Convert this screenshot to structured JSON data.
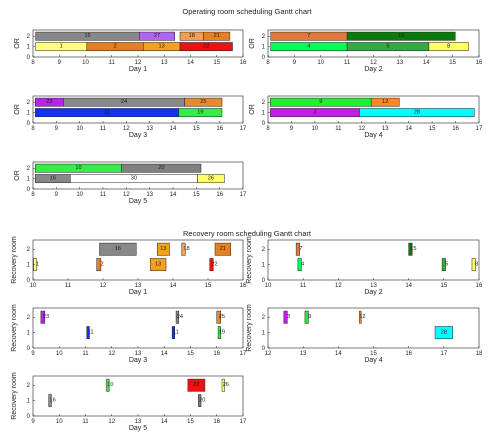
{
  "colors": {
    "1": "#ffff80",
    "2": "#e67e22",
    "3": "#c21ee6",
    "4": "#00ff55",
    "5": "#33aa44",
    "6": "#ff00aa",
    "7": "#e07a3a",
    "8": "#ffff66",
    "9": "#22ee33",
    "10": "#33ee44",
    "11": "#1133ee",
    "12": "#ff8822",
    "13": "#f5a020",
    "15": "#0a7a0a",
    "16": "#888888",
    "18": "#f0a050",
    "19": "#33ee44",
    "20": "#808080",
    "21": "#e68020",
    "22": "#ee1111",
    "23": "#bb22ee",
    "24": "#888888",
    "25": "#e68a2e",
    "26": "#ffff66",
    "27": "#b066ee",
    "28": "#00ffff",
    "30": "#ffffff"
  },
  "chart_data": [
    {
      "type": "gantt",
      "section": "or",
      "title": "Operating room scheduling Gantt chart",
      "xlabel": "Day 1",
      "ylabel": "OR",
      "xlim": [
        8,
        16
      ],
      "xticks": [
        8,
        9,
        10,
        11,
        12,
        13,
        14,
        15,
        16
      ],
      "ylim": [
        0,
        2.6
      ],
      "yticks": [
        0,
        1,
        2
      ],
      "bar_height": 0.8,
      "bars": [
        {
          "id": "1",
          "lane": 1,
          "start": 8.1,
          "end": 10.05
        },
        {
          "id": "2",
          "lane": 1,
          "start": 10.05,
          "end": 12.2
        },
        {
          "id": "13",
          "lane": 1,
          "start": 12.2,
          "end": 13.6
        },
        {
          "id": "22",
          "lane": 1,
          "start": 13.6,
          "end": 15.6
        },
        {
          "id": "16",
          "lane": 2,
          "start": 8.1,
          "end": 12.05
        },
        {
          "id": "27",
          "lane": 2,
          "start": 12.05,
          "end": 13.4
        },
        {
          "id": "18",
          "lane": 2,
          "start": 13.6,
          "end": 14.5
        },
        {
          "id": "21",
          "lane": 2,
          "start": 14.5,
          "end": 15.5
        }
      ]
    },
    {
      "type": "gantt",
      "section": "or",
      "xlabel": "Day 2",
      "ylabel": "OR",
      "xlim": [
        8,
        16
      ],
      "xticks": [
        8,
        9,
        10,
        11,
        12,
        13,
        14,
        15,
        16
      ],
      "ylim": [
        0,
        2.6
      ],
      "yticks": [
        0,
        1,
        2
      ],
      "bar_height": 0.8,
      "bars": [
        {
          "id": "4",
          "lane": 1,
          "start": 8.1,
          "end": 11.0
        },
        {
          "id": "5",
          "lane": 1,
          "start": 11.0,
          "end": 14.1
        },
        {
          "id": "8",
          "lane": 1,
          "start": 14.1,
          "end": 15.6
        },
        {
          "id": "7",
          "lane": 2,
          "start": 8.1,
          "end": 11.0
        },
        {
          "id": "15",
          "lane": 2,
          "start": 11.0,
          "end": 15.1
        }
      ]
    },
    {
      "type": "gantt",
      "section": "or",
      "xlabel": "Day 3",
      "ylabel": "OR",
      "xlim": [
        8,
        17
      ],
      "xticks": [
        8,
        9,
        10,
        11,
        12,
        13,
        14,
        15,
        16,
        17
      ],
      "ylim": [
        0,
        2.6
      ],
      "yticks": [
        0,
        1,
        2
      ],
      "bar_height": 0.8,
      "bars": [
        {
          "id": "11",
          "lane": 1,
          "start": 8.1,
          "end": 14.25
        },
        {
          "id": "19",
          "lane": 1,
          "start": 14.25,
          "end": 16.1
        },
        {
          "id": "23",
          "lane": 2,
          "start": 8.1,
          "end": 9.3
        },
        {
          "id": "24",
          "lane": 2,
          "start": 9.3,
          "end": 14.5
        },
        {
          "id": "25",
          "lane": 2,
          "start": 14.5,
          "end": 16.1
        }
      ]
    },
    {
      "type": "gantt",
      "section": "or",
      "xlabel": "Day 4",
      "ylabel": "OR",
      "xlim": [
        8,
        17
      ],
      "xticks": [
        8,
        9,
        10,
        11,
        12,
        13,
        14,
        15,
        16,
        17
      ],
      "ylim": [
        0,
        2.6
      ],
      "yticks": [
        0,
        1,
        2
      ],
      "bar_height": 0.8,
      "bars": [
        {
          "id": "3",
          "lane": 1,
          "start": 8.1,
          "end": 11.9
        },
        {
          "id": "28",
          "lane": 1,
          "start": 11.9,
          "end": 16.8
        },
        {
          "id": "9",
          "lane": 2,
          "start": 8.1,
          "end": 12.4
        },
        {
          "id": "12",
          "lane": 2,
          "start": 12.4,
          "end": 13.6
        }
      ]
    },
    {
      "type": "gantt",
      "section": "or",
      "xlabel": "Day 5",
      "ylabel": "OR",
      "xlim": [
        8,
        17
      ],
      "xticks": [
        8,
        9,
        10,
        11,
        12,
        13,
        14,
        15,
        16,
        17
      ],
      "ylim": [
        0,
        2.6
      ],
      "yticks": [
        0,
        1,
        2
      ],
      "bar_height": 0.8,
      "bars": [
        {
          "id": "16",
          "lane": 1,
          "start": 8.1,
          "end": 9.6
        },
        {
          "id": "30",
          "lane": 1,
          "start": 9.6,
          "end": 15.05
        },
        {
          "id": "26",
          "lane": 1,
          "start": 15.05,
          "end": 16.2
        },
        {
          "id": "10",
          "lane": 2,
          "start": 8.1,
          "end": 11.8
        },
        {
          "id": "20",
          "lane": 2,
          "start": 11.8,
          "end": 15.2
        }
      ]
    },
    {
      "type": "gantt",
      "section": "rr",
      "title": "Recovery room scheduling Gantt chart",
      "xlabel": "Day 1",
      "ylabel": "Recovery room",
      "xlim": [
        10,
        16
      ],
      "xticks": [
        10,
        11,
        12,
        13,
        14,
        15,
        16
      ],
      "ylim": [
        0,
        2.6
      ],
      "yticks": [
        0,
        1,
        2
      ],
      "bar_height": 0.8,
      "bars": [
        {
          "id": "1",
          "lane": 1,
          "start": 10.02,
          "end": 10.1
        },
        {
          "id": "2",
          "lane": 1,
          "start": 11.82,
          "end": 11.94
        },
        {
          "id": "13",
          "lane": 1,
          "start": 13.35,
          "end": 13.8
        },
        {
          "id": "22",
          "lane": 1,
          "start": 15.05,
          "end": 15.15
        },
        {
          "id": "16",
          "lane": 2,
          "start": 11.9,
          "end": 12.95
        },
        {
          "id": "13",
          "lane": 2,
          "start": 13.55,
          "end": 13.9
        },
        {
          "id": "18",
          "lane": 2,
          "start": 14.25,
          "end": 14.35
        },
        {
          "id": "21",
          "lane": 2,
          "start": 15.2,
          "end": 15.65
        }
      ]
    },
    {
      "type": "gantt",
      "section": "rr",
      "xlabel": "Day 2",
      "ylabel": "Recovery room",
      "xlim": [
        10,
        16
      ],
      "xticks": [
        10,
        11,
        12,
        13,
        14,
        15,
        16
      ],
      "ylim": [
        0,
        2.6
      ],
      "yticks": [
        0,
        1,
        2
      ],
      "bar_height": 0.8,
      "bars": [
        {
          "id": "4",
          "lane": 1,
          "start": 10.85,
          "end": 10.95
        },
        {
          "id": "5",
          "lane": 1,
          "start": 14.95,
          "end": 15.05
        },
        {
          "id": "8",
          "lane": 1,
          "start": 15.8,
          "end": 15.9
        },
        {
          "id": "7",
          "lane": 2,
          "start": 10.8,
          "end": 10.9
        },
        {
          "id": "15",
          "lane": 2,
          "start": 14.0,
          "end": 14.1
        }
      ]
    },
    {
      "type": "gantt",
      "section": "rr",
      "xlabel": "Day 3",
      "ylabel": "Recovery room",
      "xlim": [
        9,
        17
      ],
      "xticks": [
        9,
        10,
        11,
        12,
        13,
        14,
        15,
        16,
        17
      ],
      "ylim": [
        0,
        2.6
      ],
      "yticks": [
        0,
        1,
        2
      ],
      "bar_height": 0.8,
      "bars": [
        {
          "id": "11",
          "lane": 1,
          "start": 11.05,
          "end": 11.15
        },
        {
          "id": "11",
          "lane": 1,
          "start": 14.3,
          "end": 14.4
        },
        {
          "id": "19",
          "lane": 1,
          "start": 16.05,
          "end": 16.15
        },
        {
          "id": "23",
          "lane": 2,
          "start": 9.3,
          "end": 9.45
        },
        {
          "id": "24",
          "lane": 2,
          "start": 14.45,
          "end": 14.55
        },
        {
          "id": "25",
          "lane": 2,
          "start": 16.0,
          "end": 16.15
        }
      ]
    },
    {
      "type": "gantt",
      "section": "rr",
      "xlabel": "Day 4",
      "ylabel": "Recovery room",
      "xlim": [
        12,
        18
      ],
      "xticks": [
        12,
        13,
        14,
        15,
        16,
        17,
        18
      ],
      "ylim": [
        0,
        2.6
      ],
      "yticks": [
        0,
        1,
        2
      ],
      "bar_height": 0.8,
      "bars": [
        {
          "id": "28",
          "lane": 1,
          "start": 16.75,
          "end": 17.25
        },
        {
          "id": "3",
          "lane": 2,
          "start": 12.45,
          "end": 12.55
        },
        {
          "id": "9",
          "lane": 2,
          "start": 13.05,
          "end": 13.15
        },
        {
          "id": "12",
          "lane": 2,
          "start": 14.6,
          "end": 14.65
        }
      ]
    },
    {
      "type": "gantt",
      "section": "rr",
      "xlabel": "Day 5",
      "ylabel": "Recovery room",
      "xlim": [
        9,
        17
      ],
      "xticks": [
        9,
        10,
        11,
        12,
        13,
        14,
        15,
        16,
        17
      ],
      "ylim": [
        0,
        2.6
      ],
      "yticks": [
        0,
        1,
        2
      ],
      "bar_height": 0.8,
      "bars": [
        {
          "id": "16",
          "lane": 1,
          "start": 9.6,
          "end": 9.7
        },
        {
          "id": "20",
          "lane": 1,
          "start": 15.3,
          "end": 15.4
        },
        {
          "id": "10",
          "lane": 2,
          "start": 11.8,
          "end": 11.9
        },
        {
          "id": "22",
          "lane": 2,
          "start": 14.9,
          "end": 15.55
        },
        {
          "id": "26",
          "lane": 2,
          "start": 16.2,
          "end": 16.3
        }
      ]
    }
  ]
}
